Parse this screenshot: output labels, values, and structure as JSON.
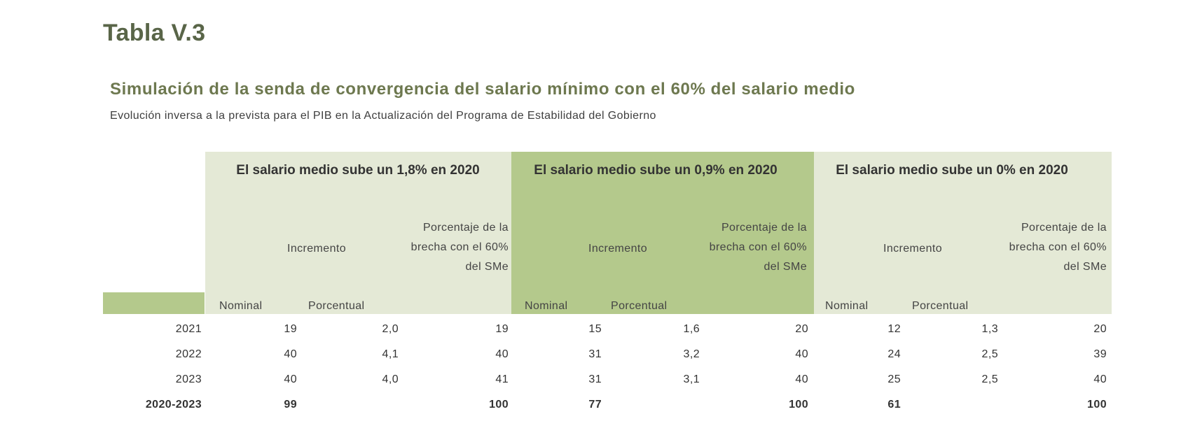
{
  "table_label": "Tabla V.3",
  "title": "Simulación de la senda de convergencia del salario mínimo con el 60% del salario medio",
  "subtitle": "Evolución inversa a la prevista para el PIB en la Actualización del Programa de Estabilidad del Gobierno",
  "groups": [
    {
      "heading": "El salario medio sube un 1,8% en 2020",
      "increment_label": "Incremento",
      "nominal_label": "Nominal",
      "percentual_label": "Porcentual",
      "gap_label": "Porcentaje de la brecha con el 60% del SMe"
    },
    {
      "heading": "El salario medio sube un 0,9% en 2020",
      "increment_label": "Incremento",
      "nominal_label": "Nominal",
      "percentual_label": "Porcentual",
      "gap_label": "Porcentaje de la brecha con el 60% del SMe"
    },
    {
      "heading": "El salario medio sube un 0% en 2020",
      "increment_label": "Incremento",
      "nominal_label": "Nominal",
      "percentual_label": "Porcentual",
      "gap_label": "Porcentaje de la brecha con el 60% del SMe"
    }
  ],
  "rows": [
    {
      "year": "2021",
      "cells": [
        "19",
        "2,0",
        "19",
        "15",
        "1,6",
        "20",
        "12",
        "1,3",
        "20"
      ]
    },
    {
      "year": "2022",
      "cells": [
        "40",
        "4,1",
        "40",
        "31",
        "3,2",
        "40",
        "24",
        "2,5",
        "39"
      ]
    },
    {
      "year": "2023",
      "cells": [
        "40",
        "4,0",
        "41",
        "31",
        "3,1",
        "40",
        "25",
        "2,5",
        "40"
      ]
    },
    {
      "year": "2020-2023",
      "cells": [
        "99",
        "",
        "100",
        "77",
        "",
        "100",
        "61",
        "",
        "100"
      ]
    }
  ],
  "colors": {
    "light_green": "#e4e9d6",
    "mid_green": "#b4c98c",
    "title_green": "#596548"
  }
}
